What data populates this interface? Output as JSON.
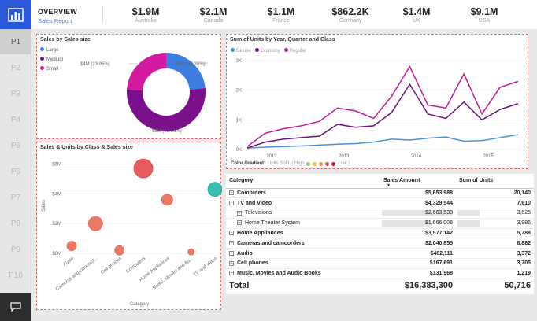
{
  "nav": {
    "pages": [
      "P1",
      "P2",
      "P3",
      "P4",
      "P5",
      "P6",
      "P7",
      "P8",
      "P9",
      "P10"
    ],
    "active": "P1",
    "logo_icon": "bar-chart-icon",
    "chat_icon": "chat-icon",
    "accent": "#2b58d9"
  },
  "header": {
    "title": "OVERVIEW",
    "subtitle": "Sales Report",
    "kpis": [
      {
        "value": "$1.9M",
        "label": "Australia"
      },
      {
        "value": "$2.1M",
        "label": "Canada"
      },
      {
        "value": "$1.1M",
        "label": "France"
      },
      {
        "value": "$862.2K",
        "label": "Germany"
      },
      {
        "value": "$1.4M",
        "label": "UK"
      },
      {
        "value": "$9.1M",
        "label": "USA"
      }
    ]
  },
  "donut": {
    "title": "Sales by Sales size",
    "legend": [
      "Large",
      "Medium",
      "Small"
    ],
    "labels": {
      "large": "$4M (23.38%)",
      "medium": "$9M (52.66%)",
      "small": "$4M (23.95%)"
    }
  },
  "bubble": {
    "title": "Sales & Units by Class & Sales size",
    "xlabel": "Category",
    "ylabel": "Sales",
    "yticks": [
      "$6M",
      "$4M",
      "$2M",
      "$0M"
    ],
    "categories": [
      "Audio",
      "Cameras and camcord...",
      "Cell phones",
      "Computers",
      "Home Appliances",
      "Music, Movies and Au...",
      "TV and Video"
    ]
  },
  "line": {
    "title": "Sum of Units by Year, Quarter and Class",
    "legend": [
      "Deluxe",
      "Economy",
      "Regular"
    ],
    "yticks": [
      "3K",
      "2K",
      "1K",
      "0K"
    ],
    "xticks": [
      "2012",
      "2013",
      "2014",
      "2015"
    ],
    "gradient_label": "Color Gradient:",
    "gradient_text": "Units Sold",
    "gradient_high": "( High",
    "gradient_low": "Low )"
  },
  "table": {
    "headers": [
      "Category",
      "Sales Amount",
      "Sum of Units"
    ],
    "rows": [
      {
        "cat": "Computers",
        "sales": "$5,653,988",
        "units": "20,140",
        "level": 0,
        "toggle": "+"
      },
      {
        "cat": "TV and Video",
        "sales": "$4,329,544",
        "units": "7,610",
        "level": 0,
        "toggle": "-"
      },
      {
        "cat": "Televisions",
        "sales": "$2,663,538",
        "units": "3,625",
        "level": 1,
        "toggle": "+"
      },
      {
        "cat": "Home Theater System",
        "sales": "$1,666,006",
        "units": "3,985",
        "level": 1,
        "toggle": "+"
      },
      {
        "cat": "Home Appliances",
        "sales": "$3,577,142",
        "units": "5,788",
        "level": 0,
        "toggle": "+"
      },
      {
        "cat": "Cameras and camcorders",
        "sales": "$2,040,855",
        "units": "8,882",
        "level": 0,
        "toggle": "+"
      },
      {
        "cat": "Audio",
        "sales": "$482,111",
        "units": "3,372",
        "level": 0,
        "toggle": "+"
      },
      {
        "cat": "Cell phones",
        "sales": "$167,691",
        "units": "3,705",
        "level": 0,
        "toggle": "+"
      },
      {
        "cat": "Music, Movies and Audio Books",
        "sales": "$131,968",
        "units": "1,219",
        "level": 0,
        "toggle": "+"
      }
    ],
    "total": {
      "label": "Total",
      "sales": "$16,383,300",
      "units": "50,716"
    }
  },
  "chart_data": [
    {
      "type": "pie",
      "title": "Sales by Sales size",
      "categories": [
        "Large",
        "Medium",
        "Small"
      ],
      "values": [
        23.38,
        52.66,
        23.95
      ],
      "labels": [
        "$4M (23.38%)",
        "$9M (52.66%)",
        "$4M (23.95%)"
      ],
      "colors": [
        "#3b7de0",
        "#7a108c",
        "#d21aa0"
      ]
    },
    {
      "type": "scatter",
      "title": "Sales & Units by Class & Sales size",
      "xlabel": "Category",
      "ylabel": "Sales",
      "ylim": [
        0,
        6.5
      ],
      "categories": [
        "Audio",
        "Cameras and camcord...",
        "Cell phones",
        "Computers",
        "Home Appliances",
        "Music, Movies and Au...",
        "TV and Video"
      ],
      "points": [
        {
          "x": "Audio",
          "y": 0.5,
          "size": 6,
          "color": "#e8624a"
        },
        {
          "x": "Cameras and camcord...",
          "y": 2.0,
          "size": 9,
          "color": "#e8624a"
        },
        {
          "x": "Cell phones",
          "y": 0.2,
          "size": 6,
          "color": "#e8624a"
        },
        {
          "x": "Computers",
          "y": 5.7,
          "size": 12,
          "color": "#e34040"
        },
        {
          "x": "Home Appliances",
          "y": 3.6,
          "size": 7,
          "color": "#e8624a"
        },
        {
          "x": "Music, Movies and Au...",
          "y": 0.1,
          "size": 4,
          "color": "#e8624a"
        },
        {
          "x": "TV and Video",
          "y": 4.3,
          "size": 9,
          "color": "#16b3a3"
        }
      ]
    },
    {
      "type": "line",
      "title": "Sum of Units by Year, Quarter and Class",
      "ylim": [
        0,
        3
      ],
      "xticks": [
        "2012",
        "2013",
        "2014",
        "2015"
      ],
      "x": [
        "2012Q1",
        "2012Q2",
        "2012Q3",
        "2012Q4",
        "2013Q1",
        "2013Q2",
        "2013Q3",
        "2013Q4",
        "2014Q1",
        "2014Q2",
        "2014Q3",
        "2014Q4",
        "2015Q1",
        "2015Q2",
        "2015Q3",
        "2015Q4"
      ],
      "series": [
        {
          "name": "Deluxe",
          "color": "#4a8fe0",
          "values": [
            0.05,
            0.08,
            0.1,
            0.12,
            0.15,
            0.18,
            0.2,
            0.25,
            0.35,
            0.32,
            0.38,
            0.42,
            0.28,
            0.3,
            0.4,
            0.5
          ]
        },
        {
          "name": "Economy",
          "color": "#6a0f80",
          "values": [
            0.05,
            0.25,
            0.35,
            0.4,
            0.45,
            0.85,
            0.75,
            0.8,
            1.25,
            2.2,
            1.2,
            1.05,
            1.6,
            1.0,
            1.35,
            1.55
          ]
        },
        {
          "name": "Regular",
          "color": "#c21a9a",
          "values": [
            0.1,
            0.55,
            0.7,
            0.8,
            0.95,
            1.4,
            1.3,
            1.05,
            1.8,
            2.8,
            1.5,
            1.4,
            2.55,
            1.2,
            2.1,
            2.3
          ]
        }
      ]
    }
  ]
}
